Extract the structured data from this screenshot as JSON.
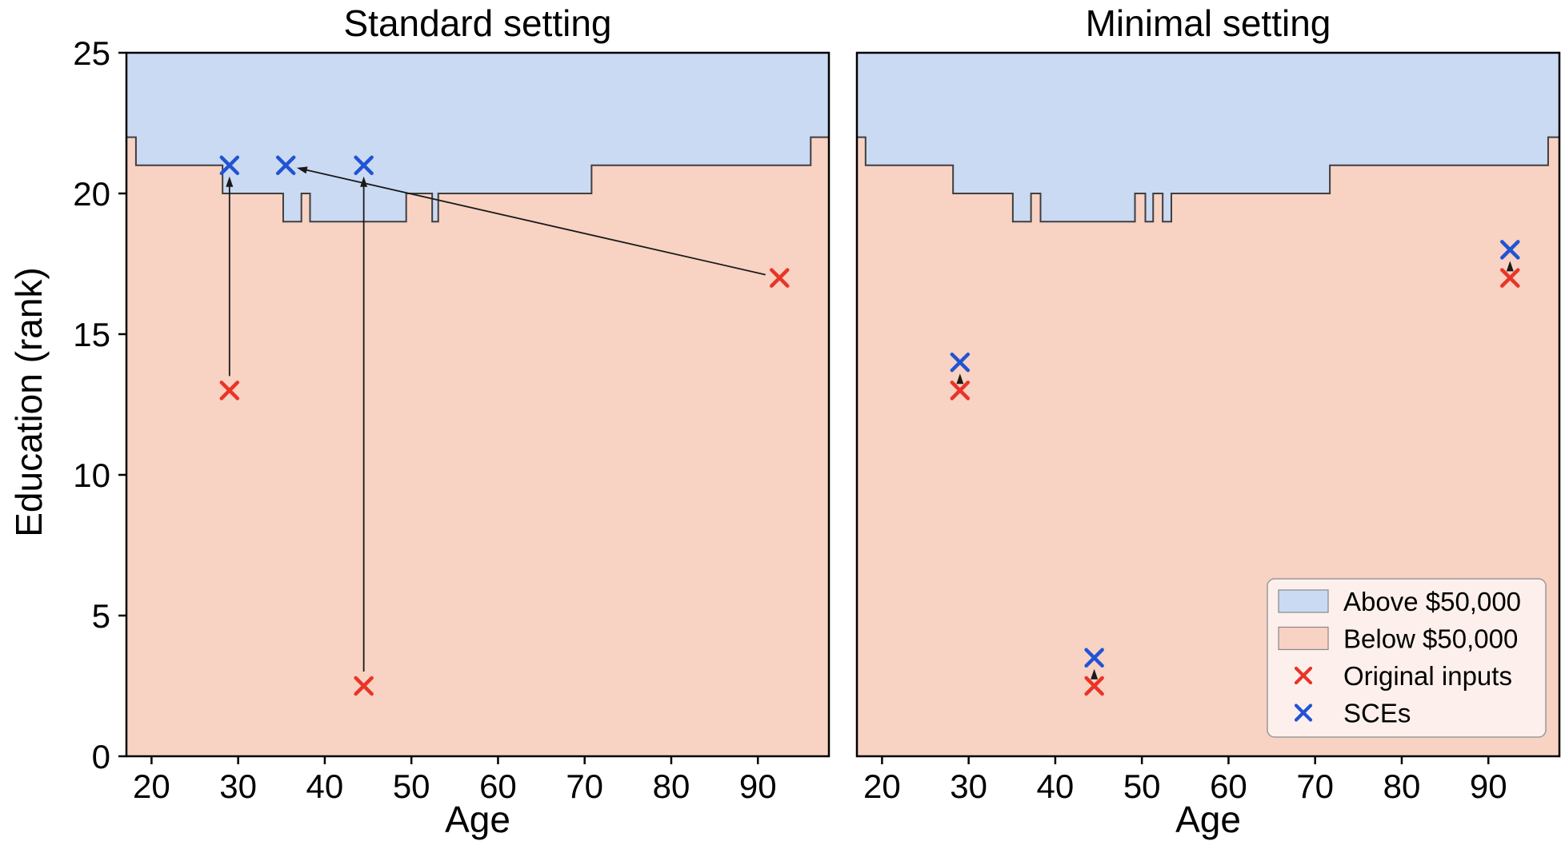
{
  "colors": {
    "above_region": "#cbdaf3",
    "below_region": "#f8d2c3",
    "boundary_line": "#3f3f3f",
    "red_marker": "#e93428",
    "blue_marker": "#2154d3",
    "arrow": "#1a1a1a",
    "axis": "#000000",
    "legend_bg": "#fdf0ec",
    "legend_border": "#999999"
  },
  "legend": {
    "items": [
      {
        "label": "Above $50,000",
        "kind": "swatch",
        "color_key": "above_region"
      },
      {
        "label": "Below $50,000",
        "kind": "swatch",
        "color_key": "below_region"
      },
      {
        "label": "Original inputs",
        "kind": "x-marker",
        "color_key": "red_marker"
      },
      {
        "label": "SCEs",
        "kind": "x-marker",
        "color_key": "blue_marker"
      }
    ]
  },
  "chart_data": [
    {
      "type": "scatter",
      "title": "Standard setting",
      "xlabel": "Age",
      "ylabel": "Education (rank)",
      "xlim": [
        17.1,
        98.2
      ],
      "ylim": [
        0,
        25
      ],
      "xticks": [
        20,
        30,
        40,
        50,
        60,
        70,
        80,
        90
      ],
      "yticks": [
        0,
        5,
        10,
        15,
        20,
        25
      ],
      "grid": false,
      "above_label": "Above $50,000",
      "below_label": "Below $50,000",
      "decision_boundary_steps": [
        {
          "from_age": 17.1,
          "to_age": 18.2,
          "education": 22
        },
        {
          "from_age": 18.2,
          "to_age": 28.2,
          "education": 21
        },
        {
          "from_age": 28.2,
          "to_age": 35.2,
          "education": 20
        },
        {
          "from_age": 35.2,
          "to_age": 37.3,
          "education": 19
        },
        {
          "from_age": 37.3,
          "to_age": 38.3,
          "education": 20
        },
        {
          "from_age": 38.3,
          "to_age": 49.4,
          "education": 19
        },
        {
          "from_age": 49.4,
          "to_age": 52.4,
          "education": 20
        },
        {
          "from_age": 52.4,
          "to_age": 53.1,
          "education": 19
        },
        {
          "from_age": 53.1,
          "to_age": 70.8,
          "education": 20
        },
        {
          "from_age": 70.8,
          "to_age": 96.1,
          "education": 21
        },
        {
          "from_age": 96.1,
          "to_age": 98.2,
          "education": 22
        }
      ],
      "series": [
        {
          "name": "Original inputs",
          "marker": "x",
          "color_key": "red_marker",
          "points": [
            {
              "age": 29,
              "education": 13
            },
            {
              "age": 44.5,
              "education": 2.5
            },
            {
              "age": 92.5,
              "education": 17
            }
          ]
        },
        {
          "name": "SCEs",
          "marker": "x",
          "color_key": "blue_marker",
          "points": [
            {
              "age": 29,
              "education": 21
            },
            {
              "age": 35.5,
              "education": 21
            },
            {
              "age": 44.5,
              "education": 21
            }
          ]
        }
      ],
      "arrows": [
        {
          "from": [
            29,
            13
          ],
          "to": [
            29,
            21
          ]
        },
        {
          "from": [
            44.5,
            2.5
          ],
          "to": [
            44.5,
            21
          ]
        },
        {
          "from": [
            92.5,
            17
          ],
          "to": [
            35.5,
            21
          ]
        }
      ],
      "show_legend": false
    },
    {
      "type": "scatter",
      "title": "Minimal setting",
      "xlabel": "Age",
      "ylabel": "Education (rank)",
      "xlim": [
        17.1,
        98.2
      ],
      "ylim": [
        0,
        25
      ],
      "xticks": [
        20,
        30,
        40,
        50,
        60,
        70,
        80,
        90
      ],
      "yticks": [
        0,
        5,
        10,
        15,
        20,
        25
      ],
      "grid": false,
      "above_label": "Above $50,000",
      "below_label": "Below $50,000",
      "decision_boundary_steps": [
        {
          "from_age": 17.1,
          "to_age": 18.1,
          "education": 22
        },
        {
          "from_age": 18.1,
          "to_age": 28.2,
          "education": 21
        },
        {
          "from_age": 28.2,
          "to_age": 35.1,
          "education": 20
        },
        {
          "from_age": 35.1,
          "to_age": 37.2,
          "education": 19
        },
        {
          "from_age": 37.2,
          "to_age": 38.3,
          "education": 20
        },
        {
          "from_age": 38.3,
          "to_age": 49.2,
          "education": 19
        },
        {
          "from_age": 49.2,
          "to_age": 50.4,
          "education": 20
        },
        {
          "from_age": 50.4,
          "to_age": 51.3,
          "education": 19
        },
        {
          "from_age": 51.3,
          "to_age": 52.4,
          "education": 20
        },
        {
          "from_age": 52.4,
          "to_age": 53.4,
          "education": 19
        },
        {
          "from_age": 53.4,
          "to_age": 71.7,
          "education": 20
        },
        {
          "from_age": 71.7,
          "to_age": 96.9,
          "education": 21
        },
        {
          "from_age": 96.9,
          "to_age": 98.2,
          "education": 22
        }
      ],
      "series": [
        {
          "name": "Original inputs",
          "marker": "x",
          "color_key": "red_marker",
          "points": [
            {
              "age": 29,
              "education": 13
            },
            {
              "age": 44.5,
              "education": 2.5
            },
            {
              "age": 92.5,
              "education": 17
            }
          ]
        },
        {
          "name": "SCEs",
          "marker": "x",
          "color_key": "blue_marker",
          "points": [
            {
              "age": 29,
              "education": 14
            },
            {
              "age": 44.5,
              "education": 3.5
            },
            {
              "age": 92.5,
              "education": 18
            }
          ]
        }
      ],
      "arrows": [
        {
          "from": [
            29,
            13
          ],
          "to": [
            29,
            14
          ]
        },
        {
          "from": [
            44.5,
            2.5
          ],
          "to": [
            44.5,
            3.5
          ]
        },
        {
          "from": [
            92.5,
            17
          ],
          "to": [
            92.5,
            18
          ]
        }
      ],
      "show_legend": true
    }
  ]
}
